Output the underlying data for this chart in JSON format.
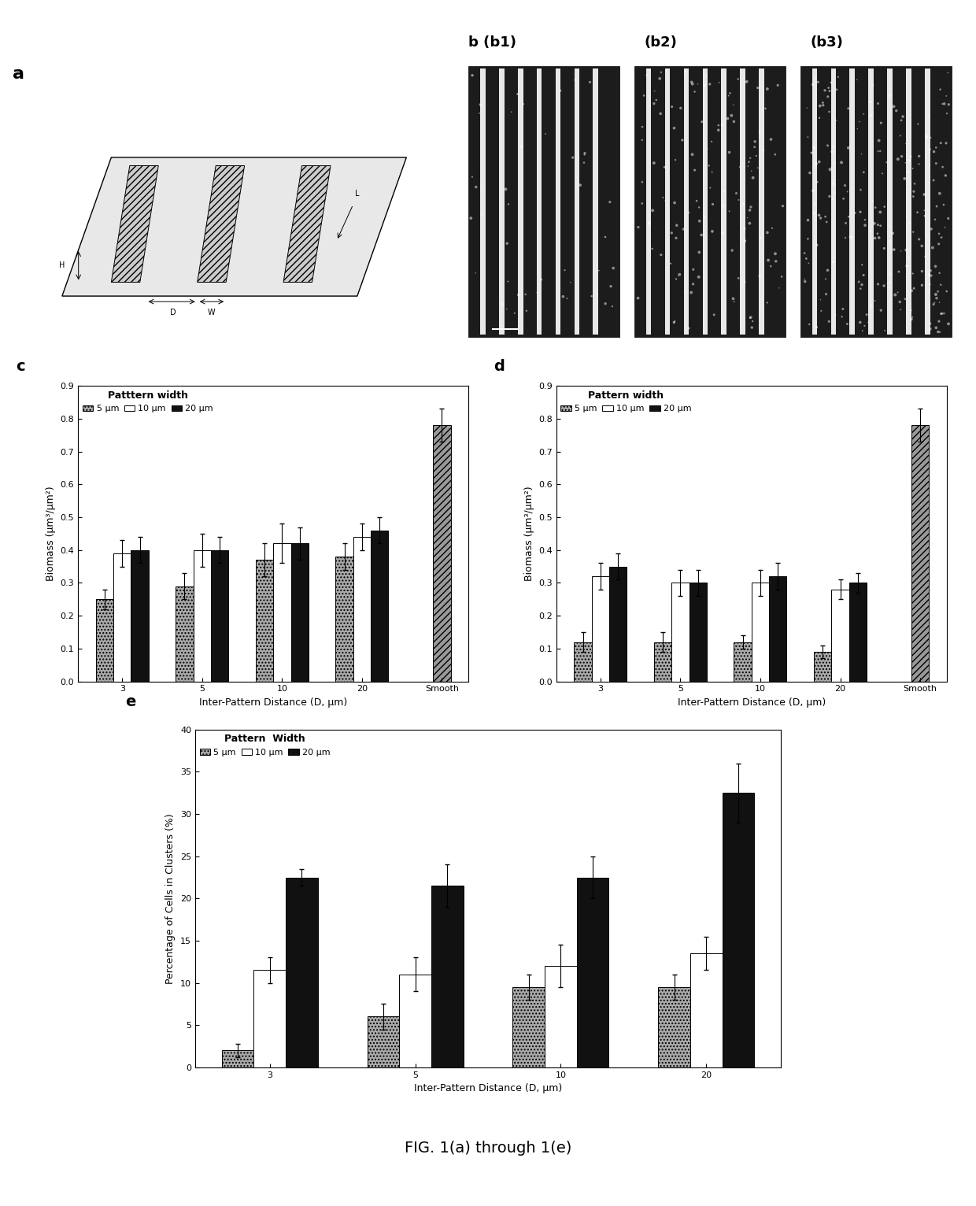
{
  "panel_c": {
    "title": "Patttern width",
    "legend_labels": [
      "5 μm",
      "10 μm",
      "20 μm"
    ],
    "xlabel": "Inter-Pattern Distance (D, μm)",
    "ylabel": "Biomass (μm³/μm²)",
    "ylim": [
      0,
      0.9
    ],
    "yticks": [
      0,
      0.1,
      0.2,
      0.3,
      0.4,
      0.5,
      0.6,
      0.7,
      0.8,
      0.9
    ],
    "categories": [
      "3",
      "5",
      "10",
      "20",
      "Smooth"
    ],
    "values_5": [
      0.25,
      0.29,
      0.37,
      0.38,
      null
    ],
    "values_10": [
      0.39,
      0.4,
      0.42,
      0.44,
      null
    ],
    "values_20": [
      0.4,
      0.4,
      0.42,
      0.46,
      0.78
    ],
    "errors_5": [
      0.03,
      0.04,
      0.05,
      0.04,
      null
    ],
    "errors_10": [
      0.04,
      0.05,
      0.06,
      0.04,
      null
    ],
    "errors_20": [
      0.04,
      0.04,
      0.05,
      0.04,
      0.05
    ]
  },
  "panel_d": {
    "title": "Pattern width",
    "legend_labels": [
      "5 μm",
      "10 μm",
      "20 μm"
    ],
    "xlabel": "Inter-Pattern Distance (D, μm)",
    "ylabel": "Biomass (μm³/μm²)",
    "ylim": [
      0,
      0.9
    ],
    "yticks": [
      0,
      0.1,
      0.2,
      0.3,
      0.4,
      0.5,
      0.6,
      0.7,
      0.8,
      0.9
    ],
    "categories": [
      "3",
      "5",
      "10",
      "20",
      "Smooth"
    ],
    "values_5": [
      0.12,
      0.12,
      0.12,
      0.09,
      null
    ],
    "values_10": [
      0.32,
      0.3,
      0.3,
      0.28,
      null
    ],
    "values_20": [
      0.35,
      0.3,
      0.32,
      0.3,
      0.78
    ],
    "errors_5": [
      0.03,
      0.03,
      0.02,
      0.02,
      null
    ],
    "errors_10": [
      0.04,
      0.04,
      0.04,
      0.03,
      null
    ],
    "errors_20": [
      0.04,
      0.04,
      0.04,
      0.03,
      0.05
    ]
  },
  "panel_e": {
    "title": "Pattern  Width",
    "legend_labels": [
      "5 μm",
      "10 μm",
      "20 μm"
    ],
    "xlabel": "Inter-Pattern Distance (D, μm)",
    "ylabel": "Percentage of Cells in Clusters (%)",
    "ylim": [
      0,
      40
    ],
    "yticks": [
      0,
      5,
      10,
      15,
      20,
      25,
      30,
      35,
      40
    ],
    "categories": [
      "3",
      "5",
      "10",
      "20"
    ],
    "values_5": [
      2.0,
      6.0,
      9.5,
      9.5
    ],
    "values_10": [
      11.5,
      11.0,
      12.0,
      13.5
    ],
    "values_20": [
      22.5,
      21.5,
      22.5,
      32.5
    ],
    "errors_5": [
      0.8,
      1.5,
      1.5,
      1.5
    ],
    "errors_10": [
      1.5,
      2.0,
      2.5,
      2.0
    ],
    "errors_20": [
      1.0,
      2.5,
      2.5,
      3.5
    ]
  },
  "background_color": "#ffffff",
  "bar_color_5": "#aaaaaa",
  "bar_color_10": "#ffffff",
  "bar_color_20": "#111111",
  "bar_color_smooth": "#999999",
  "bar_edgecolor": "#000000",
  "bar_width": 0.22,
  "fig_caption": "FIG. 1(a) through 1(e)"
}
